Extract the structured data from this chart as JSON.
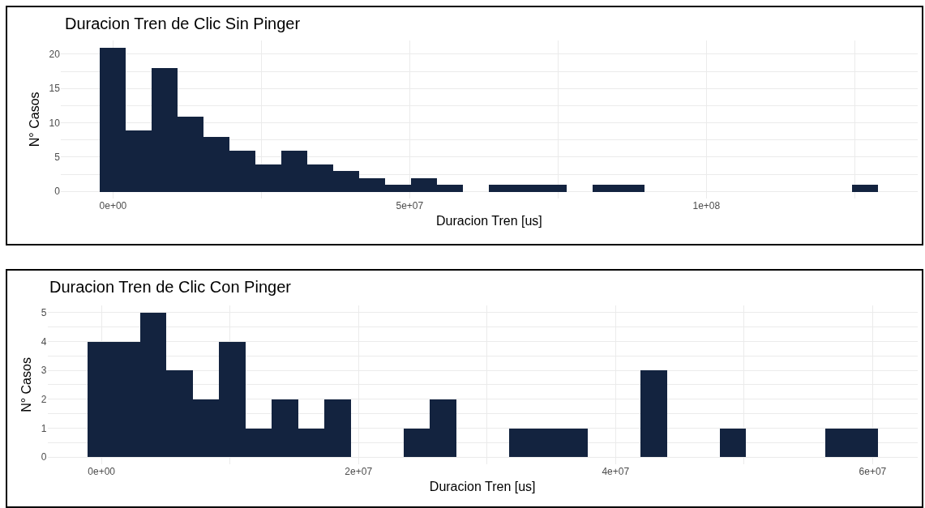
{
  "chart_data": [
    {
      "type": "histogram",
      "title": "Duracion Tren de Clic Sin Pinger",
      "xlabel": "Duracion Tren [us]",
      "ylabel": "N° Casos",
      "color": "#13233f",
      "bins": [
        -2200000,
        2170000,
        6540000,
        10910000,
        15280000,
        19650000,
        24020000,
        28390000,
        32760000,
        37130000,
        41500000,
        45870000,
        50240000,
        54610000,
        58980000,
        63350000,
        67720000,
        72090000,
        76460000,
        80830000,
        85200000,
        89570000,
        93940000,
        98310000,
        102680000,
        107050000,
        111420000,
        115790000,
        120160000,
        124530000,
        128900000
      ],
      "values": [
        21,
        9,
        18,
        11,
        8,
        6,
        4,
        6,
        4,
        3,
        2,
        1,
        2,
        1,
        0,
        1,
        1,
        1,
        0,
        1,
        1,
        0,
        0,
        0,
        0,
        0,
        0,
        0,
        0,
        1
      ],
      "xlim": [
        -8800000,
        135600000
      ],
      "xticks": [
        {
          "value": 0,
          "label": "0e+00"
        },
        {
          "value": 25000000,
          "label": null
        },
        {
          "value": 50000000,
          "label": "5e+07"
        },
        {
          "value": 75000000,
          "label": null
        },
        {
          "value": 100000000,
          "label": "1e+08"
        },
        {
          "value": 125000000,
          "label": null
        }
      ],
      "ylim": [
        -1.05,
        22.05
      ],
      "yticks": [
        0,
        {
          "value": 2.5,
          "label": null
        },
        5,
        {
          "value": 7.5,
          "label": null
        },
        10,
        {
          "value": 12.5,
          "label": null
        },
        15,
        {
          "value": 17.5,
          "label": null
        },
        20
      ],
      "grid": true
    },
    {
      "type": "histogram",
      "title": "Duracion Tren de Clic Con Pinger",
      "xlabel": "Duracion Tren [us]",
      "ylabel": "N° Casos",
      "color": "#13233f",
      "bins": [
        -1120000,
        930000,
        2980000,
        5030000,
        7080000,
        9130000,
        11180000,
        13230000,
        15280000,
        17330000,
        19380000,
        21430000,
        23480000,
        25530000,
        27580000,
        29630000,
        31680000,
        33730000,
        35780000,
        37830000,
        39880000,
        41930000,
        43980000,
        46030000,
        48080000,
        50130000,
        52180000,
        54230000,
        56280000,
        58330000,
        60380000
      ],
      "values": [
        4,
        4,
        5,
        3,
        2,
        4,
        1,
        2,
        1,
        2,
        0,
        0,
        1,
        2,
        0,
        0,
        1,
        1,
        1,
        0,
        0,
        3,
        0,
        0,
        1,
        0,
        0,
        0,
        1,
        1
      ],
      "xlim": [
        -4200000,
        63500000
      ],
      "xticks": [
        {
          "value": 0,
          "label": "0e+00"
        },
        {
          "value": 10000000,
          "label": null
        },
        {
          "value": 20000000,
          "label": "2e+07"
        },
        {
          "value": 30000000,
          "label": null
        },
        {
          "value": 40000000,
          "label": "4e+07"
        },
        {
          "value": 50000000,
          "label": null
        },
        {
          "value": 60000000,
          "label": "6e+07"
        }
      ],
      "ylim": [
        -0.25,
        5.25
      ],
      "yticks": [
        0,
        {
          "value": 0.5,
          "label": null
        },
        1,
        {
          "value": 1.5,
          "label": null
        },
        2,
        {
          "value": 2.5,
          "label": null
        },
        3,
        {
          "value": 3.5,
          "label": null
        },
        4,
        {
          "value": 4.5,
          "label": null
        },
        5
      ],
      "grid": true
    }
  ]
}
